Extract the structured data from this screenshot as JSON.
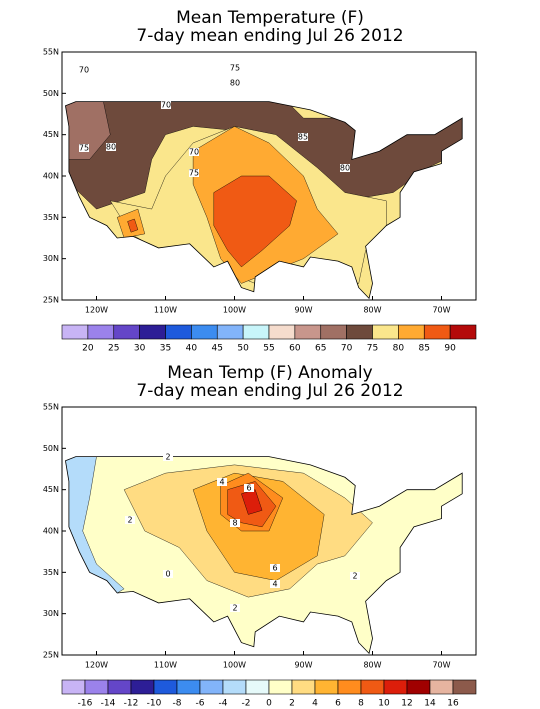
{
  "maps": [
    {
      "title": "Mean Temperature (F)",
      "subtitle": "7-day mean ending Jul 26 2012",
      "lat_labels": [
        "55N",
        "50N",
        "45N",
        "40N",
        "35N",
        "30N",
        "25N"
      ],
      "lon_labels": [
        "120W",
        "110W",
        "100W",
        "90W",
        "80W",
        "70W"
      ],
      "contour_labels": [
        "70",
        "75",
        "80",
        "70",
        "70",
        "75",
        "75",
        "80",
        "85",
        "80"
      ],
      "colorbar": {
        "colors": [
          "#c8b4f5",
          "#9b82eb",
          "#6446c8",
          "#2d1e96",
          "#1e5adc",
          "#3c8cf0",
          "#82b4fa",
          "#c8f5fa",
          "#f5dccd",
          "#c8968c",
          "#a07064",
          "#6e4a3c",
          "#fae68c",
          "#ffaa32",
          "#f05a14",
          "#b40a0a"
        ],
        "labels": [
          "20",
          "25",
          "30",
          "35",
          "40",
          "45",
          "50",
          "55",
          "60",
          "65",
          "70",
          "75",
          "80",
          "85",
          "90"
        ]
      }
    },
    {
      "title": "Mean Temp (F) Anomaly",
      "subtitle": "7-day mean ending Jul 26 2012",
      "lat_labels": [
        "55N",
        "50N",
        "45N",
        "40N",
        "35N",
        "30N",
        "25N"
      ],
      "lon_labels": [
        "120W",
        "110W",
        "100W",
        "90W",
        "80W",
        "70W"
      ],
      "contour_labels": [
        "2",
        "4",
        "6",
        "8",
        "6",
        "4",
        "2",
        "2",
        "0",
        "2"
      ],
      "colorbar": {
        "colors": [
          "#c8b4f5",
          "#9b82eb",
          "#6446c8",
          "#2d1e96",
          "#1e5adc",
          "#3c8cf0",
          "#82b4fa",
          "#b4dcfa",
          "#e6fafa",
          "#ffffc8",
          "#ffdc82",
          "#ffb432",
          "#ff8c1e",
          "#f05a14",
          "#dc1e0a",
          "#a00000",
          "#e6b4a0",
          "#8c5a4b"
        ],
        "labels": [
          "-16",
          "-14",
          "-12",
          "-10",
          "-8",
          "-6",
          "-4",
          "-2",
          "0",
          "2",
          "4",
          "6",
          "8",
          "10",
          "12",
          "14",
          "16"
        ]
      }
    }
  ]
}
